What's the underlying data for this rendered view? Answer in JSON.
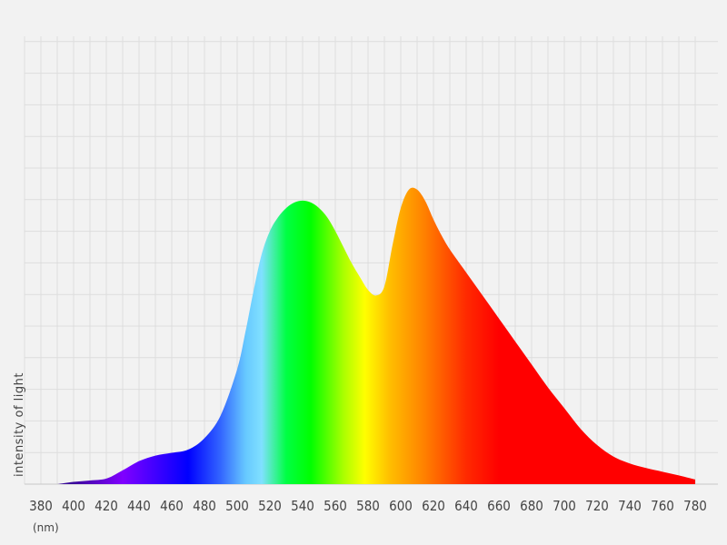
{
  "chart_data": {
    "type": "area",
    "title": "",
    "xlabel_unit": "(nm)",
    "ylabel": "intensity of light",
    "xlim": [
      370,
      785
    ],
    "ylim": [
      0,
      1
    ],
    "grid": true,
    "legend": "none",
    "x_ticks": [
      380,
      400,
      420,
      440,
      460,
      480,
      500,
      520,
      540,
      560,
      580,
      600,
      620,
      640,
      660,
      680,
      700,
      720,
      740,
      760,
      780
    ],
    "series": [
      {
        "x": [
          390,
          400,
          410,
          420,
          430,
          440,
          450,
          460,
          470,
          480,
          490,
          500,
          505,
          510,
          515,
          520,
          525,
          530,
          535,
          540,
          545,
          550,
          555,
          560,
          565,
          570,
          575,
          580,
          585,
          590,
          595,
          600,
          605,
          610,
          615,
          620,
          625,
          630,
          640,
          650,
          660,
          670,
          680,
          690,
          700,
          710,
          720,
          730,
          740,
          750,
          760,
          770,
          780
        ],
        "y": [
          0.0,
          0.005,
          0.008,
          0.012,
          0.03,
          0.05,
          0.062,
          0.068,
          0.075,
          0.1,
          0.15,
          0.25,
          0.33,
          0.42,
          0.5,
          0.55,
          0.58,
          0.6,
          0.612,
          0.616,
          0.612,
          0.6,
          0.58,
          0.55,
          0.515,
          0.48,
          0.45,
          0.422,
          0.41,
          0.43,
          0.52,
          0.6,
          0.64,
          0.64,
          0.615,
          0.575,
          0.54,
          0.51,
          0.46,
          0.41,
          0.36,
          0.31,
          0.26,
          0.21,
          0.165,
          0.12,
          0.085,
          0.06,
          0.045,
          0.035,
          0.027,
          0.019,
          0.01
        ]
      }
    ],
    "gradient_stops": [
      {
        "nm": 400,
        "color": "#3a0a9a"
      },
      {
        "nm": 430,
        "color": "#8000ff"
      },
      {
        "nm": 470,
        "color": "#0000ff"
      },
      {
        "nm": 490,
        "color": "#3366ff"
      },
      {
        "nm": 505,
        "color": "#66c8ff"
      },
      {
        "nm": 515,
        "color": "#80e0ff"
      },
      {
        "nm": 530,
        "color": "#00ff44"
      },
      {
        "nm": 545,
        "color": "#00ff00"
      },
      {
        "nm": 565,
        "color": "#aaff00"
      },
      {
        "nm": 578,
        "color": "#ffff00"
      },
      {
        "nm": 593,
        "color": "#ffbf00"
      },
      {
        "nm": 615,
        "color": "#ff7f00"
      },
      {
        "nm": 640,
        "color": "#ff2a00"
      },
      {
        "nm": 660,
        "color": "#ff0000"
      },
      {
        "nm": 780,
        "color": "#ff0000"
      }
    ]
  }
}
